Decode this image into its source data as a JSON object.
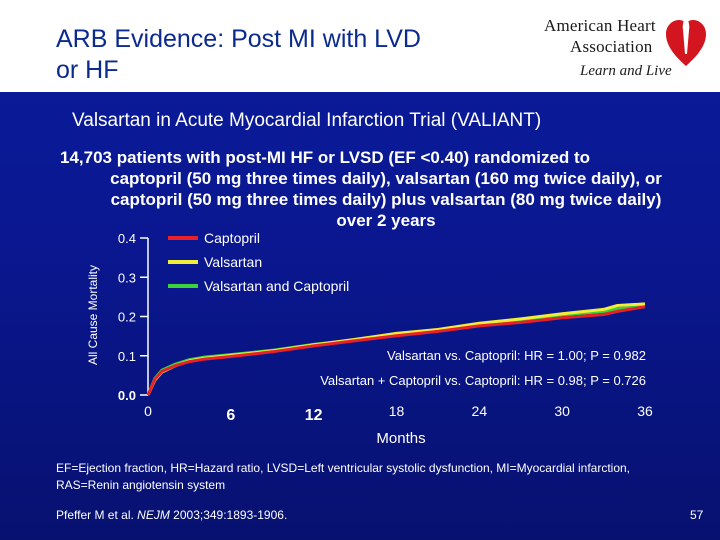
{
  "header": {
    "title_line1": "ARB Evidence: Post MI with LVD",
    "title_line2": "or HF",
    "logo": {
      "line1": "American Heart",
      "line2": "Association",
      "tagline": "Learn and Live"
    }
  },
  "subtitle": "Valsartan in Acute Myocardial Infarction Trial (VALIANT)",
  "description": [
    "14,703 patients with post-MI HF or LVSD (EF <0.40) randomized to",
    "captopril (50 mg three times daily), valsartan (160 mg twice daily), or",
    "captopril (50 mg three times daily) plus valsartan (80 mg twice daily)",
    "over 2 years"
  ],
  "colors": {
    "captopril": "#e8202a",
    "valsartan": "#f2ec3a",
    "combo": "#3ad43a",
    "title": "#0b2a8f"
  },
  "chart_data": {
    "type": "line",
    "xlabel": "Months",
    "ylabel": "All Cause Mortality",
    "xlim": [
      0,
      36
    ],
    "ylim": [
      0,
      0.4
    ],
    "x_ticks": [
      "0",
      "6",
      "12",
      "18",
      "24",
      "30",
      "36"
    ],
    "y_ticks": [
      "0.0",
      "0.1",
      "0.2",
      "0.3",
      "0.4"
    ],
    "x": [
      0,
      0.5,
      1,
      2,
      3,
      4,
      6,
      9,
      12,
      15,
      18,
      21,
      24,
      27,
      30,
      33,
      34,
      36
    ],
    "series": [
      {
        "name": "Captopril",
        "color_key": "captopril",
        "values": [
          0,
          0.04,
          0.06,
          0.075,
          0.085,
          0.091,
          0.098,
          0.11,
          0.125,
          0.138,
          0.151,
          0.162,
          0.176,
          0.185,
          0.197,
          0.205,
          0.213,
          0.225
        ]
      },
      {
        "name": "Valsartan",
        "color_key": "valsartan",
        "values": [
          0,
          0.038,
          0.058,
          0.075,
          0.087,
          0.093,
          0.101,
          0.112,
          0.128,
          0.142,
          0.157,
          0.167,
          0.183,
          0.194,
          0.207,
          0.218,
          0.228,
          0.232
        ]
      },
      {
        "name": "Valsartan and Captopril",
        "color_key": "combo",
        "values": [
          0,
          0.042,
          0.063,
          0.079,
          0.09,
          0.096,
          0.103,
          0.114,
          0.129,
          0.14,
          0.155,
          0.164,
          0.179,
          0.19,
          0.204,
          0.213,
          0.22,
          0.225
        ]
      }
    ],
    "legend_position": "top-left",
    "annotations": [
      "Valsartan vs. Captopril: HR = 1.00; P = 0.982",
      "Valsartan + Captopril vs. Captopril: HR = 0.98; P = 0.726"
    ]
  },
  "footnote": "EF=Ejection fraction, HR=Hazard ratio, LVSD=Left ventricular systolic dysfunction, MI=Myocardial infarction, RAS=Renin angiotensin system",
  "citation": {
    "authors": "Pfeffer M et al.",
    "journal": "NEJM",
    "details": "2003;349:1893-1906."
  },
  "page_number": "57"
}
